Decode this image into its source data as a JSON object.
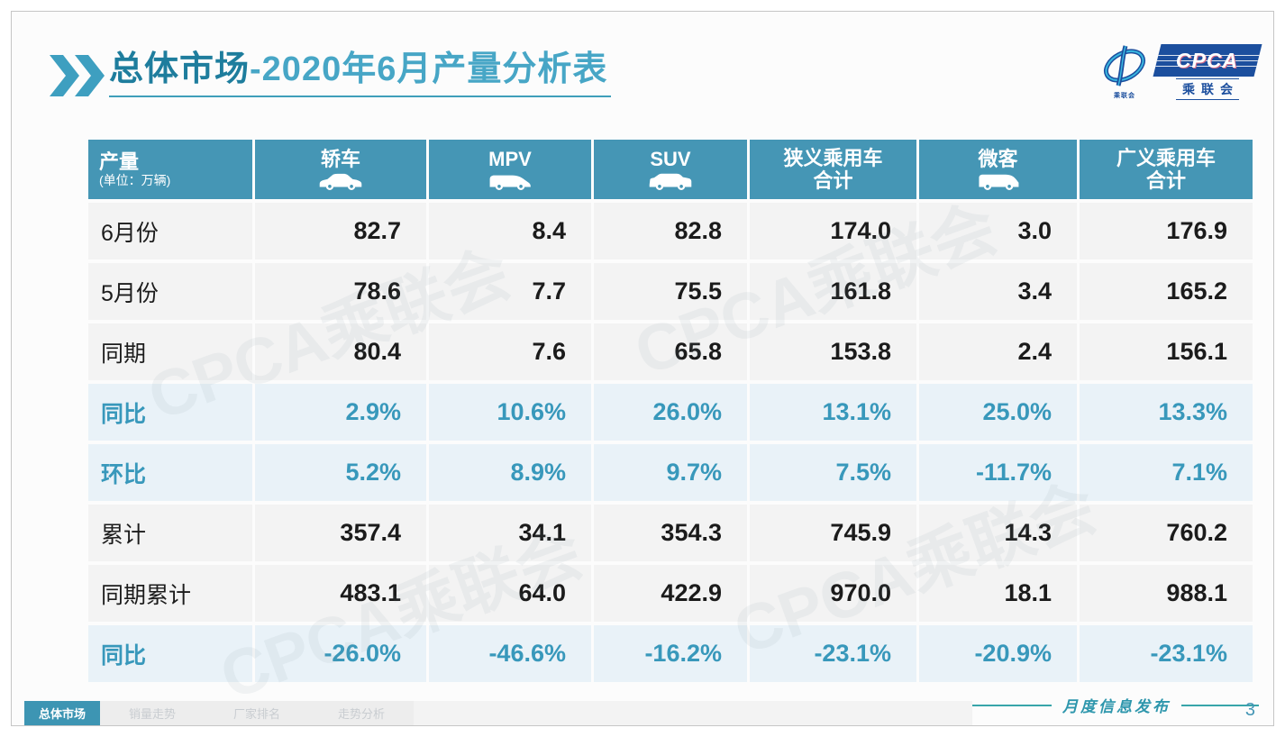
{
  "page": {
    "title_prefix": "总体市场",
    "title_rest": "-2020年6月产量分析表",
    "footer_label": "月度信息发布",
    "page_number": "3",
    "watermark_text": "CPCA乘联会"
  },
  "logo": {
    "name": "CPCA",
    "subtitle": "乘联会",
    "emblem_caption": "乘联会"
  },
  "colors": {
    "header_teal": "#4596b5",
    "accent_teal": "#3898bb",
    "title_dark_teal": "#1e7d9d",
    "title_light_teal": "#47a6c6",
    "footer_line_teal": "#38a5aa",
    "active_tab_teal": "#3d95b3",
    "percent_row_bg": "#e9f2f8",
    "normal_row_bg": "#f3f3f3",
    "logo_blue": "#1c4f9e"
  },
  "tabs": [
    {
      "label": "总体市场",
      "active": true
    },
    {
      "label": "销量走势",
      "active": false
    },
    {
      "label": "厂家排名",
      "active": false
    },
    {
      "label": "走势分析",
      "active": false
    }
  ],
  "chart_data": {
    "type": "table",
    "title": "总体市场-2020年6月产量分析表",
    "corner": {
      "label": "产量",
      "unit": "(单位：万辆)"
    },
    "columns": [
      {
        "label": "轿车",
        "icon": "sedan-car-icon"
      },
      {
        "label": "MPV",
        "icon": "mpv-car-icon"
      },
      {
        "label": "SUV",
        "icon": "suv-car-icon"
      },
      {
        "label": "狭义乘用车",
        "label2": "合计",
        "icon": null
      },
      {
        "label": "微客",
        "icon": "microvan-car-icon"
      },
      {
        "label": "广义乘用车",
        "label2": "合计",
        "icon": null
      }
    ],
    "rows": [
      {
        "label": "6月份",
        "style": "normal",
        "values": [
          "82.7",
          "8.4",
          "82.8",
          "174.0",
          "3.0",
          "176.9"
        ]
      },
      {
        "label": "5月份",
        "style": "normal",
        "values": [
          "78.6",
          "7.7",
          "75.5",
          "161.8",
          "3.4",
          "165.2"
        ]
      },
      {
        "label": "同期",
        "style": "normal",
        "values": [
          "80.4",
          "7.6",
          "65.8",
          "153.8",
          "2.4",
          "156.1"
        ]
      },
      {
        "label": "同比",
        "style": "percent",
        "values": [
          "2.9%",
          "10.6%",
          "26.0%",
          "13.1%",
          "25.0%",
          "13.3%"
        ]
      },
      {
        "label": "环比",
        "style": "percent",
        "values": [
          "5.2%",
          "8.9%",
          "9.7%",
          "7.5%",
          "-11.7%",
          "7.1%"
        ]
      },
      {
        "label": "累计",
        "style": "normal",
        "values": [
          "357.4",
          "34.1",
          "354.3",
          "745.9",
          "14.3",
          "760.2"
        ]
      },
      {
        "label": "同期累计",
        "style": "normal",
        "values": [
          "483.1",
          "64.0",
          "422.9",
          "970.0",
          "18.1",
          "988.1"
        ]
      },
      {
        "label": "同比",
        "style": "percent",
        "values": [
          "-26.0%",
          "-46.6%",
          "-16.2%",
          "-23.1%",
          "-20.9%",
          "-23.1%"
        ]
      }
    ]
  }
}
